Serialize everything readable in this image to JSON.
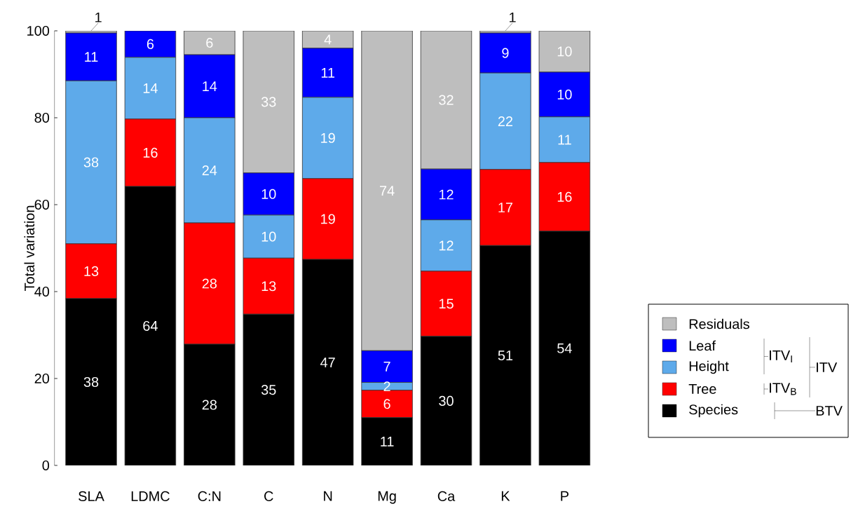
{
  "chart_data": {
    "type": "bar",
    "stacked": true,
    "ylabel": "Total variation",
    "categories": [
      "SLA",
      "LDMC",
      "C:N",
      "C",
      "N",
      "Mg",
      "Ca",
      "K",
      "P"
    ],
    "ylim": [
      0,
      100
    ],
    "yticks": [
      0,
      20,
      40,
      60,
      80,
      100
    ],
    "legend": "bottom right",
    "grid": false,
    "series": [
      {
        "name": "Species",
        "color": "#000000",
        "values": [
          38.4,
          64.2,
          27.9,
          34.8,
          47.4,
          11.0,
          29.7,
          50.6,
          53.9
        ],
        "value_labels": [
          "38",
          "64",
          "28",
          "35",
          "47",
          "11",
          "30",
          "51",
          "54"
        ]
      },
      {
        "name": "Tree",
        "color": "#ff0000",
        "values": [
          12.6,
          15.5,
          27.9,
          12.9,
          18.6,
          6.3,
          15.0,
          17.5,
          15.8
        ],
        "value_labels": [
          "13",
          "16",
          "28",
          "13",
          "19",
          "6",
          "15",
          "17",
          "16"
        ]
      },
      {
        "name": "Height",
        "color": "#5eaaea",
        "values": [
          37.5,
          14.2,
          24.2,
          9.9,
          18.7,
          1.8,
          11.8,
          22.2,
          10.5
        ],
        "value_labels": [
          "38",
          "14",
          "24",
          "10",
          "19",
          "2",
          "12",
          "22",
          "11"
        ]
      },
      {
        "name": "Leaf",
        "color": "#0000ff",
        "values": [
          11.0,
          6.1,
          14.5,
          9.7,
          11.3,
          7.3,
          11.7,
          9.2,
          10.3
        ],
        "value_labels": [
          "11",
          "6",
          "14",
          "10",
          "11",
          "7",
          "12",
          "9",
          "10"
        ]
      },
      {
        "name": "Residuals",
        "color": "#bebebe",
        "values": [
          0.5,
          0,
          5.5,
          32.7,
          4.0,
          73.6,
          31.8,
          0.5,
          9.5
        ],
        "value_labels": [
          "1",
          null,
          "6",
          "33",
          "4",
          "74",
          "32",
          "1",
          "10"
        ]
      }
    ],
    "annotations": [
      "ITV$_{I}$",
      "ITV$_{B}$",
      "ITV",
      "BTV"
    ]
  }
}
